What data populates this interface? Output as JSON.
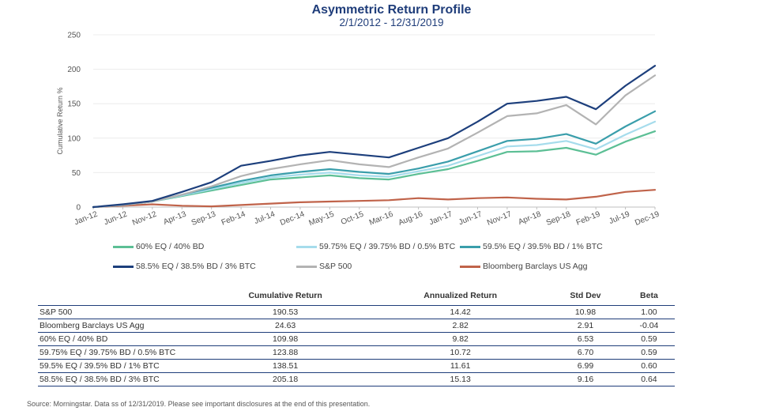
{
  "chart_data": {
    "type": "line",
    "title": "Asymmetric Return Profile",
    "subtitle": "2/1/2012 - 12/31/2019",
    "ylabel": "Cumulative Return %",
    "xlabel": "",
    "ylim": [
      0,
      250
    ],
    "yticks": [
      0,
      50,
      100,
      150,
      200,
      250
    ],
    "xticks": [
      "Jan-12",
      "Jun-12",
      "Nov-12",
      "Apr-13",
      "Sep-13",
      "Feb-14",
      "Jul-14",
      "Dec-14",
      "May-15",
      "Oct-15",
      "Mar-16",
      "Aug-16",
      "Jan-17",
      "Jun-17",
      "Nov-17",
      "Apr-18",
      "Sep-18",
      "Feb-19",
      "Jul-19",
      "Dec-19"
    ],
    "grid": "horizontal",
    "legend": "bottom",
    "x": [
      "Jan-12",
      "Jun-12",
      "Nov-12",
      "Apr-13",
      "Sep-13",
      "Feb-14",
      "Jul-14",
      "Dec-14",
      "May-15",
      "Oct-15",
      "Mar-16",
      "Aug-16",
      "Jan-17",
      "Jun-17",
      "Nov-17",
      "Apr-18",
      "Sep-18",
      "Feb-19",
      "Jul-19",
      "Dec-19"
    ],
    "series": [
      {
        "name": "60% EQ / 40% BD",
        "color": "#5cbf95",
        "values": [
          0,
          3,
          8,
          16,
          24,
          32,
          40,
          43,
          46,
          42,
          40,
          48,
          55,
          67,
          80,
          81,
          86,
          76,
          95,
          110
        ]
      },
      {
        "name": "59.75% EQ / 39.75% BD / 0.5% BTC",
        "color": "#a6dcec",
        "values": [
          0,
          3,
          8,
          17,
          26,
          35,
          43,
          47,
          50,
          46,
          44,
          52,
          60,
          74,
          88,
          90,
          96,
          84,
          105,
          124
        ]
      },
      {
        "name": "59.5% EQ / 39.5% BD / 1% BTC",
        "color": "#3a9eab",
        "values": [
          0,
          3,
          8,
          18,
          28,
          38,
          46,
          51,
          55,
          51,
          48,
          56,
          66,
          81,
          96,
          99,
          106,
          92,
          117,
          139
        ]
      },
      {
        "name": "58.5% EQ / 38.5% BD / 3% BTC",
        "color": "#1d3f7c",
        "values": [
          0,
          4,
          9,
          22,
          36,
          60,
          67,
          75,
          80,
          76,
          72,
          86,
          100,
          124,
          150,
          154,
          160,
          142,
          176,
          205
        ]
      },
      {
        "name": "S&P 500",
        "color": "#b3b3b3",
        "values": [
          0,
          3,
          8,
          18,
          30,
          45,
          55,
          62,
          68,
          62,
          58,
          72,
          85,
          108,
          132,
          136,
          148,
          120,
          162,
          191
        ]
      },
      {
        "name": "Bloomberg Barclays US Agg",
        "color": "#c0634a",
        "values": [
          0,
          2,
          4,
          2,
          1,
          3,
          5,
          7,
          8,
          9,
          10,
          13,
          11,
          13,
          14,
          12,
          11,
          15,
          22,
          25
        ]
      }
    ]
  },
  "table": {
    "headers": [
      "",
      "Cumulative Return",
      "Annualized Return",
      "Std Dev",
      "Beta"
    ],
    "rows": [
      [
        "S&P 500",
        "190.53",
        "14.42",
        "10.98",
        "1.00"
      ],
      [
        "Bloomberg Barclays US Agg",
        "24.63",
        "2.82",
        "2.91",
        "-0.04"
      ],
      [
        "60% EQ / 40% BD",
        "109.98",
        "9.82",
        "6.53",
        "0.59"
      ],
      [
        "59.75% EQ / 39.75% BD / 0.5% BTC",
        "123.88",
        "10.72",
        "6.70",
        "0.59"
      ],
      [
        "59.5% EQ / 39.5% BD / 1% BTC",
        "138.51",
        "11.61",
        "6.99",
        "0.60"
      ],
      [
        "58.5% EQ / 38.5% BD / 3% BTC",
        "205.18",
        "15.13",
        "9.16",
        "0.64"
      ]
    ]
  },
  "source": "Source: Morningstar. Data ss of 12/31/2019. Please see important disclosures at the end of this presentation."
}
